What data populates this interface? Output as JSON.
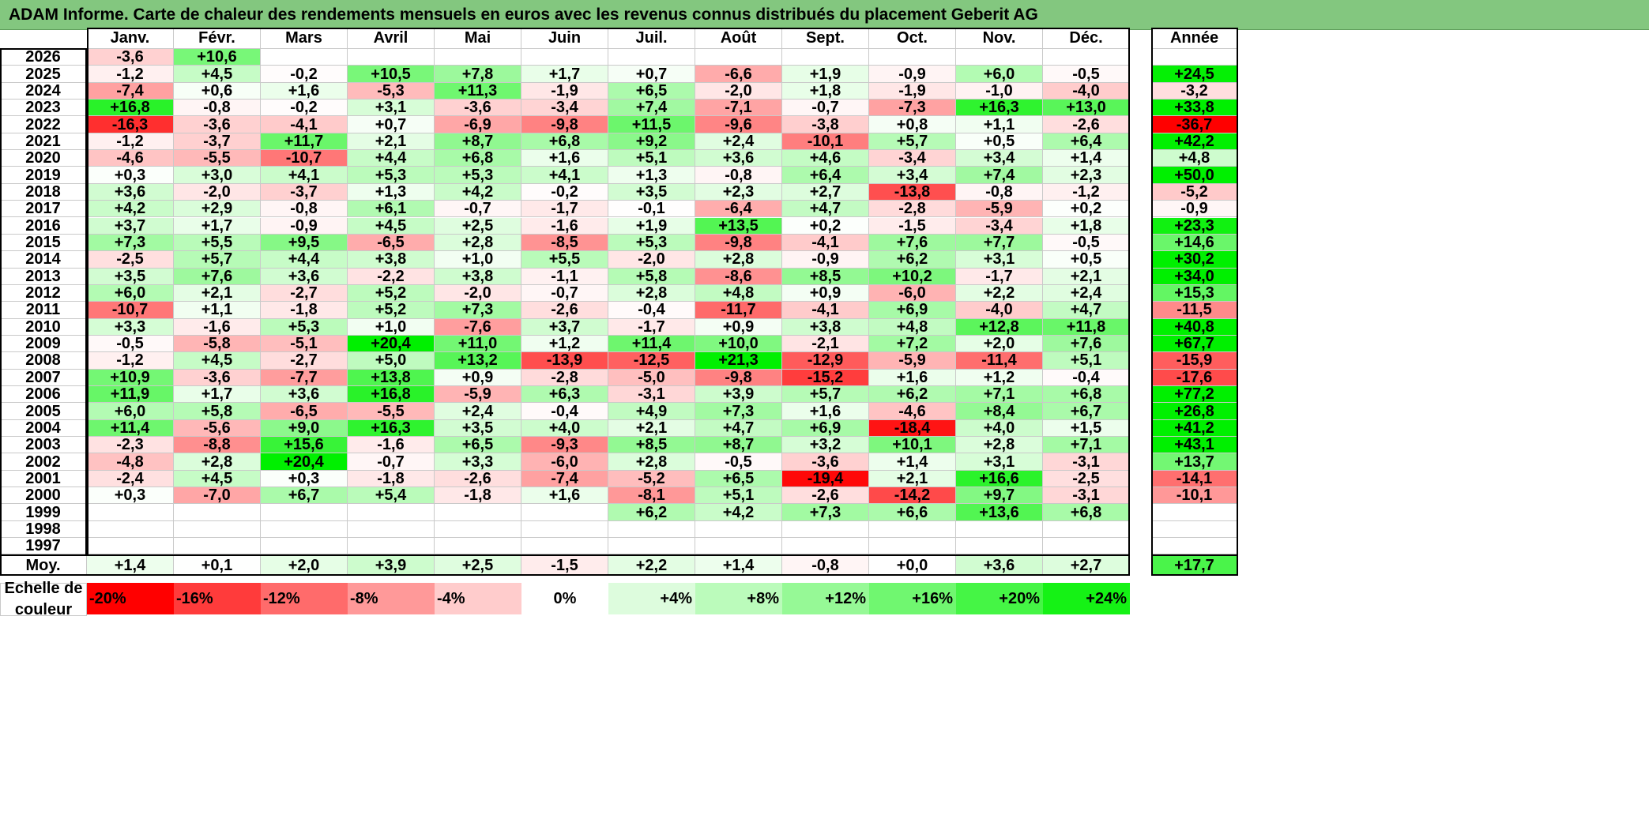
{
  "title": "ADAM Informe. Carte de chaleur des rendements mensuels en euros avec les revenus connus distribués du placement Geberit AG",
  "chart_data": {
    "type": "heatmap",
    "title": "ADAM Informe. Carte de chaleur des rendements mensuels en euros avec les revenus connus distribués du placement Geberit AG",
    "months": [
      "Janv.",
      "Févr.",
      "Mars",
      "Avril",
      "Mai",
      "Juin",
      "Juil.",
      "Août",
      "Sept.",
      "Oct.",
      "Nov.",
      "Déc."
    ],
    "year_header": "Année",
    "rows": [
      {
        "year": "2026",
        "months": [
          "-3,6",
          "+10,6",
          "",
          "",
          "",
          "",
          "",
          "",
          "",
          "",
          "",
          ""
        ],
        "annual": ""
      },
      {
        "year": "2025",
        "months": [
          "-1,2",
          "+4,5",
          "-0,2",
          "+10,5",
          "+7,8",
          "+1,7",
          "+0,7",
          "-6,6",
          "+1,9",
          "-0,9",
          "+6,0",
          "-0,5"
        ],
        "annual": "+24,5"
      },
      {
        "year": "2024",
        "months": [
          "-7,4",
          "+0,6",
          "+1,6",
          "-5,3",
          "+11,3",
          "-1,9",
          "+6,5",
          "-2,0",
          "+1,8",
          "-1,9",
          "-1,0",
          "-4,0"
        ],
        "annual": "-3,2"
      },
      {
        "year": "2023",
        "months": [
          "+16,8",
          "-0,8",
          "-0,2",
          "+3,1",
          "-3,6",
          "-3,4",
          "+7,4",
          "-7,1",
          "-0,7",
          "-7,3",
          "+16,3",
          "+13,0"
        ],
        "annual": "+33,8"
      },
      {
        "year": "2022",
        "months": [
          "-16,3",
          "-3,6",
          "-4,1",
          "+0,7",
          "-6,9",
          "-9,8",
          "+11,5",
          "-9,6",
          "-3,8",
          "+0,8",
          "+1,1",
          "-2,6"
        ],
        "annual": "-36,7"
      },
      {
        "year": "2021",
        "months": [
          "-1,2",
          "-3,7",
          "+11,7",
          "+2,1",
          "+8,7",
          "+6,8",
          "+9,2",
          "+2,4",
          "-10,1",
          "+5,7",
          "+0,5",
          "+6,4"
        ],
        "annual": "+42,2"
      },
      {
        "year": "2020",
        "months": [
          "-4,6",
          "-5,5",
          "-10,7",
          "+4,4",
          "+6,8",
          "+1,6",
          "+5,1",
          "+3,6",
          "+4,6",
          "-3,4",
          "+3,4",
          "+1,4"
        ],
        "annual": "+4,8"
      },
      {
        "year": "2019",
        "months": [
          "+0,3",
          "+3,0",
          "+4,1",
          "+5,3",
          "+5,3",
          "+4,1",
          "+1,3",
          "-0,8",
          "+6,4",
          "+3,4",
          "+7,4",
          "+2,3"
        ],
        "annual": "+50,0"
      },
      {
        "year": "2018",
        "months": [
          "+3,6",
          "-2,0",
          "-3,7",
          "+1,3",
          "+4,2",
          "-0,2",
          "+3,5",
          "+2,3",
          "+2,7",
          "-13,8",
          "-0,8",
          "-1,2"
        ],
        "annual": "-5,2"
      },
      {
        "year": "2017",
        "months": [
          "+4,2",
          "+2,9",
          "-0,8",
          "+6,1",
          "-0,7",
          "-1,7",
          "-0,1",
          "-6,4",
          "+4,7",
          "-2,8",
          "-5,9",
          "+0,2"
        ],
        "annual": "-0,9"
      },
      {
        "year": "2016",
        "months": [
          "+3,7",
          "+1,7",
          "-0,9",
          "+4,5",
          "+2,5",
          "-1,6",
          "+1,9",
          "+13,5",
          "+0,2",
          "-1,5",
          "-3,4",
          "+1,8"
        ],
        "annual": "+23,3"
      },
      {
        "year": "2015",
        "months": [
          "+7,3",
          "+5,5",
          "+9,5",
          "-6,5",
          "+2,8",
          "-8,5",
          "+5,3",
          "-9,8",
          "-4,1",
          "+7,6",
          "+7,7",
          "-0,5"
        ],
        "annual": "+14,6"
      },
      {
        "year": "2014",
        "months": [
          "-2,5",
          "+5,7",
          "+4,4",
          "+3,8",
          "+1,0",
          "+5,5",
          "-2,0",
          "+2,8",
          "-0,9",
          "+6,2",
          "+3,1",
          "+0,5"
        ],
        "annual": "+30,2"
      },
      {
        "year": "2013",
        "months": [
          "+3,5",
          "+7,6",
          "+3,6",
          "-2,2",
          "+3,8",
          "-1,1",
          "+5,8",
          "-8,6",
          "+8,5",
          "+10,2",
          "-1,7",
          "+2,1"
        ],
        "annual": "+34,0"
      },
      {
        "year": "2012",
        "months": [
          "+6,0",
          "+2,1",
          "-2,7",
          "+5,2",
          "-2,0",
          "-0,7",
          "+2,8",
          "+4,8",
          "+0,9",
          "-6,0",
          "+2,2",
          "+2,4"
        ],
        "annual": "+15,3"
      },
      {
        "year": "2011",
        "months": [
          "-10,7",
          "+1,1",
          "-1,8",
          "+5,2",
          "+7,3",
          "-2,6",
          "-0,4",
          "-11,7",
          "-4,1",
          "+6,9",
          "-4,0",
          "+4,7"
        ],
        "annual": "-11,5"
      },
      {
        "year": "2010",
        "months": [
          "+3,3",
          "-1,6",
          "+5,3",
          "+1,0",
          "-7,6",
          "+3,7",
          "-1,7",
          "+0,9",
          "+3,8",
          "+4,8",
          "+12,8",
          "+11,8"
        ],
        "annual": "+40,8"
      },
      {
        "year": "2009",
        "months": [
          "-0,5",
          "-5,8",
          "-5,1",
          "+20,4",
          "+11,0",
          "+1,2",
          "+11,4",
          "+10,0",
          "-2,1",
          "+7,2",
          "+2,0",
          "+7,6"
        ],
        "annual": "+67,7"
      },
      {
        "year": "2008",
        "months": [
          "-1,2",
          "+4,5",
          "-2,7",
          "+5,0",
          "+13,2",
          "-13,9",
          "-12,5",
          "+21,3",
          "-12,9",
          "-5,9",
          "-11,4",
          "+5,1"
        ],
        "annual": "-15,9"
      },
      {
        "year": "2007",
        "months": [
          "+10,9",
          "-3,6",
          "-7,7",
          "+13,8",
          "+0,9",
          "-2,8",
          "-5,0",
          "-9,8",
          "-15,2",
          "+1,6",
          "+1,2",
          "-0,4"
        ],
        "annual": "-17,6"
      },
      {
        "year": "2006",
        "months": [
          "+11,9",
          "+1,7",
          "+3,6",
          "+16,8",
          "-5,9",
          "+6,3",
          "-3,1",
          "+3,9",
          "+5,7",
          "+6,2",
          "+7,1",
          "+6,8"
        ],
        "annual": "+77,2"
      },
      {
        "year": "2005",
        "months": [
          "+6,0",
          "+5,8",
          "-6,5",
          "-5,5",
          "+2,4",
          "-0,4",
          "+4,9",
          "+7,3",
          "+1,6",
          "-4,6",
          "+8,4",
          "+6,7"
        ],
        "annual": "+26,8"
      },
      {
        "year": "2004",
        "months": [
          "+11,4",
          "-5,6",
          "+9,0",
          "+16,3",
          "+3,5",
          "+4,0",
          "+2,1",
          "+4,7",
          "+6,9",
          "-18,4",
          "+4,0",
          "+1,5"
        ],
        "annual": "+41,2"
      },
      {
        "year": "2003",
        "months": [
          "-2,3",
          "-8,8",
          "+15,6",
          "-1,6",
          "+6,5",
          "-9,3",
          "+8,5",
          "+8,7",
          "+3,2",
          "+10,1",
          "+2,8",
          "+7,1"
        ],
        "annual": "+43,1"
      },
      {
        "year": "2002",
        "months": [
          "-4,8",
          "+2,8",
          "+20,4",
          "-0,7",
          "+3,3",
          "-6,0",
          "+2,8",
          "-0,5",
          "-3,6",
          "+1,4",
          "+3,1",
          "-3,1"
        ],
        "annual": "+13,7"
      },
      {
        "year": "2001",
        "months": [
          "-2,4",
          "+4,5",
          "+0,3",
          "-1,8",
          "-2,6",
          "-7,4",
          "-5,2",
          "+6,5",
          "-19,4",
          "+2,1",
          "+16,6",
          "-2,5"
        ],
        "annual": "-14,1"
      },
      {
        "year": "2000",
        "months": [
          "+0,3",
          "-7,0",
          "+6,7",
          "+5,4",
          "-1,8",
          "+1,6",
          "-8,1",
          "+5,1",
          "-2,6",
          "-14,2",
          "+9,7",
          "-3,1"
        ],
        "annual": "-10,1"
      },
      {
        "year": "1999",
        "months": [
          "",
          "",
          "",
          "",
          "",
          "",
          "+6,2",
          "+4,2",
          "+7,3",
          "+6,6",
          "+13,6",
          "+6,8"
        ],
        "annual": ""
      },
      {
        "year": "1998",
        "months": [
          "",
          "",
          "",
          "",
          "",
          "",
          "",
          "",
          "",
          "",
          "",
          ""
        ],
        "annual": ""
      },
      {
        "year": "1997",
        "months": [
          "",
          "",
          "",
          "",
          "",
          "",
          "",
          "",
          "",
          "",
          "",
          ""
        ],
        "annual": ""
      }
    ],
    "average": {
      "label": "Moy.",
      "months": [
        "+1,4",
        "+0,1",
        "+2,0",
        "+3,9",
        "+2,5",
        "-1,5",
        "+2,2",
        "+1,4",
        "-0,8",
        "+0,0",
        "+3,6",
        "+2,7"
      ],
      "annual": "+17,7"
    },
    "scale": {
      "label": "Echelle de couleur",
      "steps": [
        "-20%",
        "-16%",
        "-12%",
        "-8%",
        "-4%",
        "0%",
        "+4%",
        "+8%",
        "+12%",
        "+16%",
        "+20%",
        "+24%"
      ],
      "colors": [
        "#ff0000",
        "#ff3b3b",
        "#ff6b6b",
        "#ff9999",
        "#ffcccc",
        "#ffffff",
        "#ddfcdd",
        "#bbfbbb",
        "#96f996",
        "#70f770",
        "#45f545",
        "#15f215"
      ]
    },
    "colors": {
      "positive_full": "#00f000",
      "negative_full": "#ff0000",
      "neutral": "#ffffff",
      "title_bar": "#83c77f"
    }
  }
}
